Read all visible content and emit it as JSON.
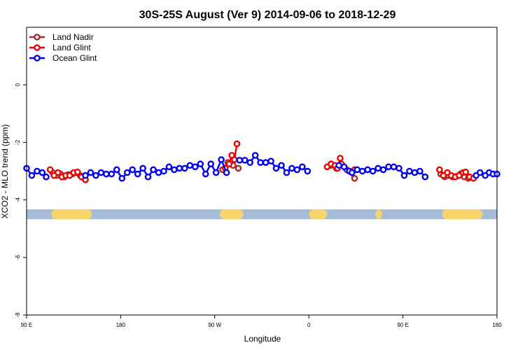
{
  "chart_data": {
    "type": "line",
    "title": "30S-25S August (Ver 9)   2014-09-06 to 2018-12-29",
    "xlabel": "Longitude",
    "ylabel": "XCO2 - MLO trend (ppm)",
    "xlim": [
      -90,
      270
    ],
    "ylim": [
      -8,
      2
    ],
    "x_ticks": [
      {
        "value": -90,
        "label": "90 E"
      },
      {
        "value": -18,
        "label": "180"
      },
      {
        "value": 54,
        "label": "90 W"
      },
      {
        "value": 126,
        "label": "0"
      },
      {
        "value": 198,
        "label": "90 E"
      },
      {
        "value": 270,
        "label": "180"
      }
    ],
    "y_ticks": [
      {
        "value": 0,
        "label": "0"
      },
      {
        "value": -2,
        "label": "-2"
      },
      {
        "value": -4,
        "label": "-4"
      },
      {
        "value": -6,
        "label": "-6"
      },
      {
        "value": -8,
        "label": "-8"
      }
    ],
    "legend_position": "top-left",
    "series": [
      {
        "name": "Land Nadir",
        "color": "#a52a2a",
        "points": [
          [
            -70,
            -3.05
          ],
          [
            -67,
            -3.15
          ],
          [
            -64,
            -3.1
          ],
          [
            -61,
            -3.2
          ],
          [
            -58,
            -3.12
          ],
          [
            -55,
            -3.1
          ],
          [
            -52,
            -3.05
          ],
          [
            -49,
            -3.15
          ],
          [
            -46,
            -3.25
          ],
          [
            60,
            -2.95
          ],
          [
            64,
            -2.7
          ],
          [
            68,
            -2.8
          ],
          [
            72,
            -2.9
          ],
          [
            143,
            -2.8
          ],
          [
            147,
            -2.9
          ],
          [
            151,
            -2.75
          ],
          [
            155,
            -2.95
          ],
          [
            161,
            -3.25
          ],
          [
            227,
            -3.1
          ],
          [
            230,
            -3.2
          ],
          [
            233,
            -3.15
          ],
          [
            236,
            -3.2
          ],
          [
            239,
            -3.18
          ],
          [
            242,
            -3.1
          ],
          [
            245,
            -3.2
          ],
          [
            248,
            -3.25
          ]
        ]
      },
      {
        "name": "Land Glint",
        "color": "#ee0000",
        "points": [
          [
            -72,
            -2.95
          ],
          [
            -69,
            -3.15
          ],
          [
            -66,
            -3.05
          ],
          [
            -63,
            -3.2
          ],
          [
            -60,
            -3.15
          ],
          [
            -57,
            -3.15
          ],
          [
            -54,
            -3.05
          ],
          [
            -51,
            -3.03
          ],
          [
            -48,
            -3.2
          ],
          [
            -45,
            -3.3
          ],
          [
            62,
            -2.9
          ],
          [
            65,
            -2.75
          ],
          [
            67,
            -2.45
          ],
          [
            69,
            -2.6
          ],
          [
            71,
            -2.05
          ],
          [
            140,
            -2.85
          ],
          [
            143,
            -2.75
          ],
          [
            146,
            -2.8
          ],
          [
            148,
            -2.9
          ],
          [
            150,
            -2.55
          ],
          [
            161,
            -2.95
          ],
          [
            226,
            -2.95
          ],
          [
            229,
            -3.15
          ],
          [
            232,
            -3.05
          ],
          [
            235,
            -3.15
          ],
          [
            238,
            -3.2
          ],
          [
            241,
            -3.15
          ],
          [
            244,
            -3.05
          ],
          [
            246,
            -3.03
          ],
          [
            249,
            -3.2
          ],
          [
            252,
            -3.25
          ]
        ]
      },
      {
        "name": "Ocean Glint",
        "color": "#0000ee",
        "points": [
          [
            -90,
            -2.9
          ],
          [
            -86,
            -3.15
          ],
          [
            -82,
            -3.0
          ],
          [
            -78,
            -3.05
          ],
          [
            -75,
            -3.2
          ],
          [
            -45,
            -3.15
          ],
          [
            -41,
            -3.05
          ],
          [
            -37,
            -3.15
          ],
          [
            -33,
            -3.05
          ],
          [
            -29,
            -3.1
          ],
          [
            -25,
            -3.1
          ],
          [
            -21,
            -2.95
          ],
          [
            -17,
            -3.25
          ],
          [
            -13,
            -3.05
          ],
          [
            -9,
            -2.95
          ],
          [
            -5,
            -3.1
          ],
          [
            -1,
            -2.9
          ],
          [
            3,
            -3.2
          ],
          [
            7,
            -2.95
          ],
          [
            11,
            -3.05
          ],
          [
            15,
            -3.0
          ],
          [
            19,
            -2.85
          ],
          [
            23,
            -2.95
          ],
          [
            27,
            -2.9
          ],
          [
            31,
            -2.9
          ],
          [
            35,
            -2.8
          ],
          [
            39,
            -2.85
          ],
          [
            43,
            -2.75
          ],
          [
            47,
            -3.1
          ],
          [
            51,
            -2.75
          ],
          [
            55,
            -3.05
          ],
          [
            59,
            -2.6
          ],
          [
            63,
            -3.05
          ],
          [
            73,
            -2.62
          ],
          [
            77,
            -2.62
          ],
          [
            81,
            -2.7
          ],
          [
            85,
            -2.45
          ],
          [
            89,
            -2.7
          ],
          [
            93,
            -2.7
          ],
          [
            97,
            -2.65
          ],
          [
            101,
            -2.9
          ],
          [
            105,
            -2.8
          ],
          [
            109,
            -3.05
          ],
          [
            113,
            -2.9
          ],
          [
            117,
            -2.95
          ],
          [
            121,
            -2.85
          ],
          [
            125,
            -3.0
          ],
          [
            149,
            -2.8
          ],
          [
            153,
            -2.85
          ],
          [
            157,
            -3.0
          ],
          [
            159,
            -3.05
          ],
          [
            163,
            -2.95
          ],
          [
            167,
            -3.0
          ],
          [
            171,
            -2.95
          ],
          [
            175,
            -3.0
          ],
          [
            179,
            -2.9
          ],
          [
            183,
            -2.95
          ],
          [
            187,
            -2.85
          ],
          [
            191,
            -2.85
          ],
          [
            195,
            -2.9
          ],
          [
            199,
            -3.15
          ],
          [
            203,
            -3.0
          ],
          [
            207,
            -3.05
          ],
          [
            211,
            -3.0
          ],
          [
            215,
            -3.2
          ],
          [
            254,
            -3.15
          ],
          [
            257,
            -3.05
          ],
          [
            261,
            -3.15
          ],
          [
            264,
            -3.05
          ],
          [
            267,
            -3.1
          ],
          [
            270,
            -3.1
          ]
        ]
      }
    ],
    "surface_band": {
      "y": -4.5,
      "ocean_color": "#a5bcd9",
      "land_color": "#f9d46d",
      "land_segments": [
        [
          -71,
          -40
        ],
        [
          58,
          76
        ],
        [
          126,
          140
        ],
        [
          177,
          182
        ],
        [
          228,
          259
        ]
      ]
    }
  }
}
